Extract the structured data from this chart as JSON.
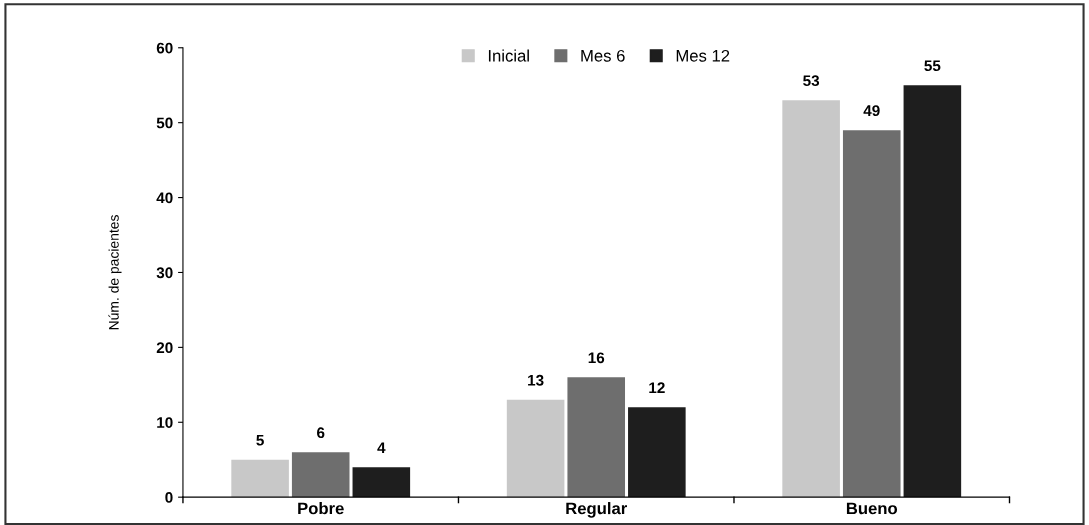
{
  "chart_data": {
    "type": "bar",
    "ylabel": "Núm. de pacientes",
    "categories": [
      "Pobre",
      "Regular",
      "Bueno"
    ],
    "series": [
      {
        "name": "Inicial",
        "color": "#c8c8c8",
        "values": [
          5,
          13,
          53
        ]
      },
      {
        "name": "Mes 6",
        "color": "#6e6e6e",
        "values": [
          6,
          16,
          49
        ]
      },
      {
        "name": "Mes 12",
        "color": "#1e1e1e",
        "values": [
          4,
          12,
          55
        ]
      }
    ],
    "ylim": [
      0,
      60
    ],
    "yticks": [
      0,
      10,
      20,
      30,
      40,
      50,
      60
    ],
    "data_labels": true,
    "grid": false,
    "legend": "top"
  }
}
